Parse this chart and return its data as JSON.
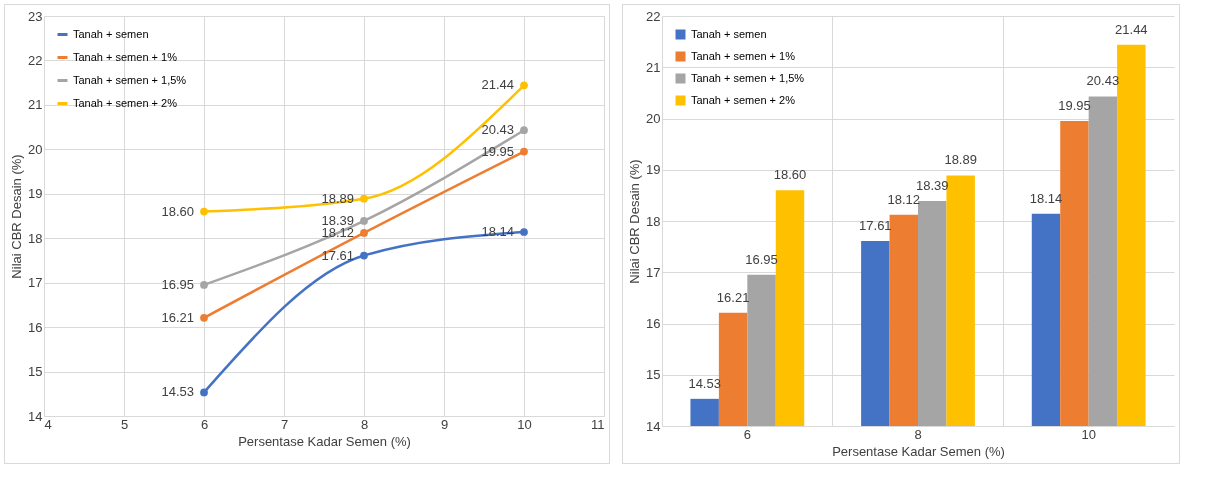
{
  "chart_data": [
    {
      "type": "line",
      "xlabel": "Persentase Kadar Semen (%)",
      "ylabel": "Nilai CBR Desain (%)",
      "xlim": [
        4,
        11
      ],
      "xticks": [
        4,
        5,
        6,
        7,
        8,
        9,
        10,
        11
      ],
      "ylim": [
        14,
        23
      ],
      "yticks": [
        14,
        15,
        16,
        17,
        18,
        19,
        20,
        21,
        22,
        23
      ],
      "grid": true,
      "legend": "top left",
      "marker": "circle",
      "line_style": "solid",
      "series": [
        {
          "name": "Tanah + semen",
          "color": "#4472c4",
          "x": [
            6,
            8,
            10
          ],
          "values": [
            14.53,
            17.61,
            18.14
          ],
          "value_labels": [
            "14.53",
            "17.61",
            "18.14"
          ]
        },
        {
          "name": "Tanah + semen + 1%",
          "color": "#ed7d31",
          "x": [
            6,
            8,
            10
          ],
          "values": [
            16.21,
            18.12,
            19.95
          ],
          "value_labels": [
            "16.21",
            "18.12",
            "19.95"
          ]
        },
        {
          "name": "Tanah + semen + 1,5%",
          "color": "#a5a5a5",
          "x": [
            6,
            8,
            10
          ],
          "values": [
            16.95,
            18.39,
            20.43
          ],
          "value_labels": [
            "16.95",
            "18.39",
            "20.43"
          ]
        },
        {
          "name": "Tanah + semen + 2%",
          "color": "#ffc000",
          "x": [
            6,
            8,
            10
          ],
          "values": [
            18.6,
            18.89,
            21.44
          ],
          "value_labels": [
            "18.60",
            "18.89",
            "21.44"
          ]
        }
      ]
    },
    {
      "type": "bar",
      "xlabel": "Persentase Kadar Semen (%)",
      "ylabel": "Nilai CBR Desain (%)",
      "categories": [
        "6",
        "8",
        "10"
      ],
      "ylim": [
        14,
        22
      ],
      "yticks": [
        14,
        15,
        16,
        17,
        18,
        19,
        20,
        21,
        22
      ],
      "grid": true,
      "legend": "top left",
      "series": [
        {
          "name": "Tanah + semen",
          "color": "#4472c4",
          "values": [
            14.53,
            17.61,
            18.14
          ],
          "value_labels": [
            "14.53",
            "17.61",
            "18.14"
          ]
        },
        {
          "name": "Tanah + semen + 1%",
          "color": "#ed7d31",
          "values": [
            16.21,
            18.12,
            19.95
          ],
          "value_labels": [
            "16.21",
            "18.12",
            "19.95"
          ]
        },
        {
          "name": "Tanah + semen + 1,5%",
          "color": "#a5a5a5",
          "values": [
            16.95,
            18.39,
            20.43
          ],
          "value_labels": [
            "16.95",
            "18.39",
            "20.43"
          ]
        },
        {
          "name": "Tanah + semen + 2%",
          "color": "#ffc000",
          "values": [
            18.6,
            18.89,
            21.44
          ],
          "value_labels": [
            "18.60",
            "18.89",
            "21.44"
          ]
        }
      ]
    }
  ]
}
